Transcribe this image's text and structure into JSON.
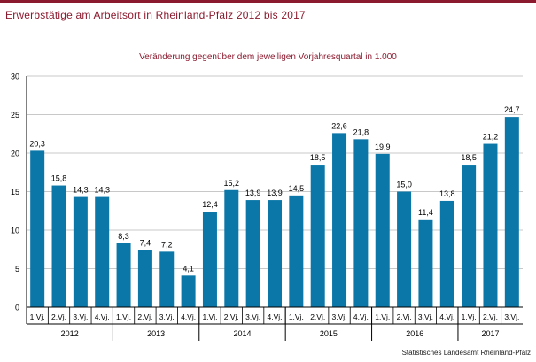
{
  "title": "Erwerbstätige am Arbeitsort in Rheinland-Pfalz 2012 bis 2017",
  "source": "Statistisches Landesamt Rheinland-Pfalz",
  "colors": {
    "bar": "#0b77a8",
    "accent": "#8b1a2e",
    "grid": "#c8c8c8",
    "axis": "#000000"
  },
  "chart_data": {
    "type": "bar",
    "title": "Veränderung gegenüber dem jeweiligen Vorjahresquartal in 1.000",
    "ylim": [
      0,
      30
    ],
    "yticks": [
      0,
      5,
      10,
      15,
      20,
      25,
      30
    ],
    "grid": true,
    "categories": [
      "1.Vj.",
      "2.Vj.",
      "3.Vj.",
      "4.Vj.",
      "1.Vj.",
      "2.Vj.",
      "3.Vj.",
      "4.Vj.",
      "1.Vj.",
      "2.Vj.",
      "3.Vj.",
      "4.Vj.",
      "1.Vj.",
      "2.Vj.",
      "3.Vj.",
      "4.Vj.",
      "1.Vj.",
      "2.Vj.",
      "3.Vj.",
      "4.Vj.",
      "1.Vj.",
      "2.Vj.",
      "3.Vj."
    ],
    "values": [
      20.3,
      15.8,
      14.3,
      14.3,
      8.3,
      7.4,
      7.2,
      4.1,
      12.4,
      15.2,
      13.9,
      13.9,
      14.5,
      18.5,
      22.6,
      21.8,
      19.9,
      15.0,
      11.4,
      13.8,
      18.5,
      21.2,
      24.7
    ],
    "value_labels": [
      "20,3",
      "15,8",
      "14,3",
      "14,3",
      "8,3",
      "7,4",
      "7,2",
      "4,1",
      "12,4",
      "15,2",
      "13,9",
      "13,9",
      "14,5",
      "18,5",
      "22,6",
      "21,8",
      "19,9",
      "15,0",
      "11,4",
      "13,8",
      "18,5",
      "21,2",
      "24,7"
    ],
    "groups": [
      {
        "label": "2012",
        "count": 4
      },
      {
        "label": "2013",
        "count": 4
      },
      {
        "label": "2014",
        "count": 4
      },
      {
        "label": "2015",
        "count": 4
      },
      {
        "label": "2016",
        "count": 4
      },
      {
        "label": "2017",
        "count": 3
      }
    ]
  }
}
